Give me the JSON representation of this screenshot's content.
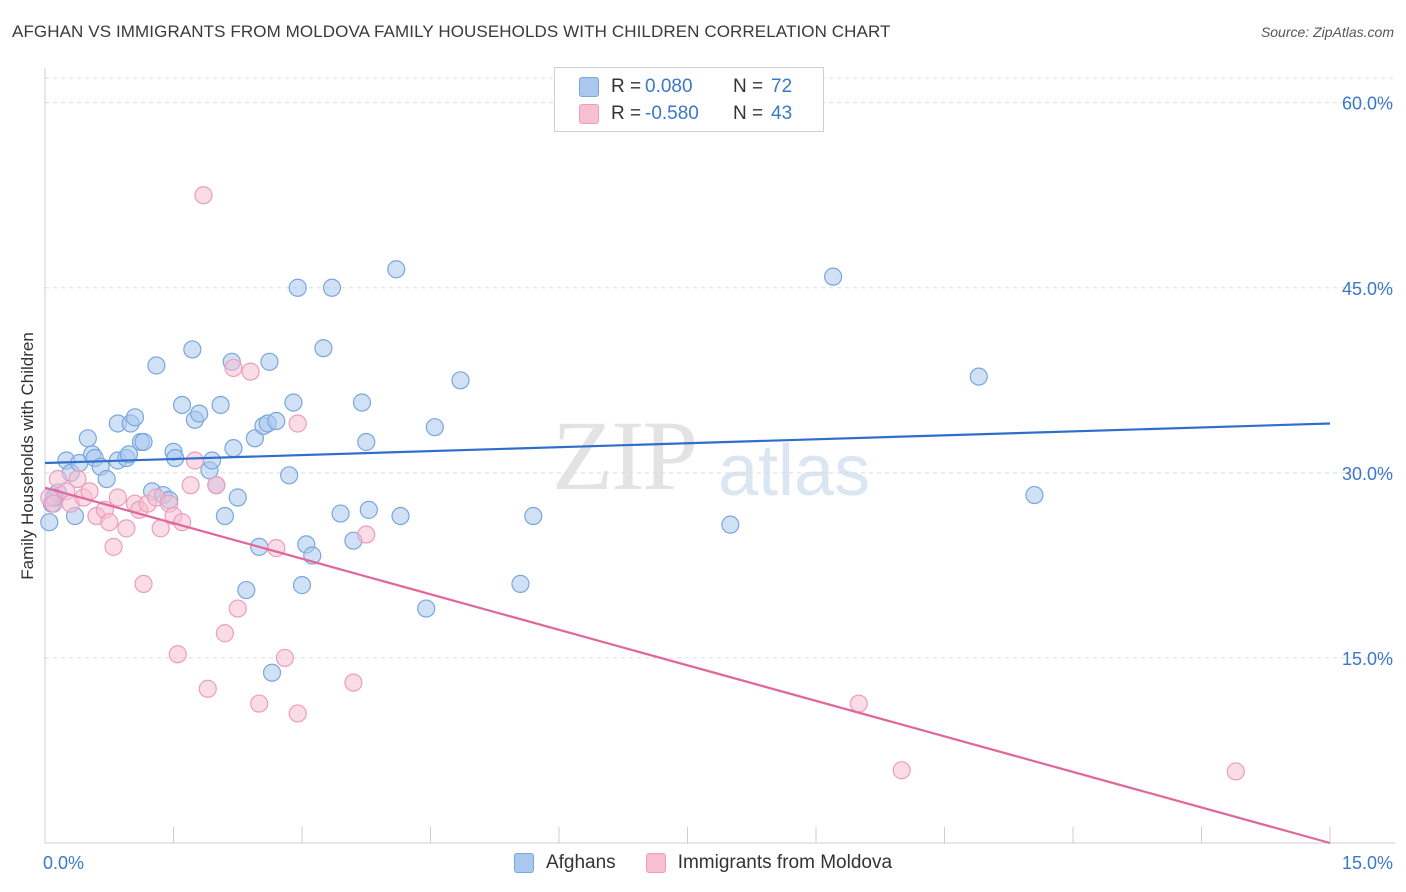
{
  "title": "AFGHAN VS IMMIGRANTS FROM MOLDOVA FAMILY HOUSEHOLDS WITH CHILDREN CORRELATION CHART",
  "source": "Source: ZipAtlas.com",
  "watermark": {
    "zip": "ZIP",
    "atlas": "atlas"
  },
  "legend": {
    "rows": [
      {
        "r_label": "R =",
        "r_value": "0.080",
        "n_label": "N =",
        "n_value": "72"
      },
      {
        "r_label": "R =",
        "r_value": "-0.580",
        "n_label": "N =",
        "n_value": "43"
      }
    ]
  },
  "bottom_legend": {
    "afghans": "Afghans",
    "moldova": "Immigrants from Moldova"
  },
  "colors": {
    "afghan_fill": "#aac8ee",
    "afghan_stroke": "#7aa6de",
    "afghan_line": "#2f6fcb",
    "moldova_fill": "#f6bfd2",
    "moldova_stroke": "#ee9dbb",
    "moldova_line": "#e0679a",
    "tick_label": "#3a78c9",
    "grid": "#dcdcdc"
  },
  "chart_data": {
    "type": "scatter",
    "title": "AFGHAN VS IMMIGRANTS FROM MOLDOVA FAMILY HOUSEHOLDS WITH CHILDREN CORRELATION CHART",
    "xlabel": "",
    "ylabel": "Family Households with Children",
    "xlim": [
      0,
      15
    ],
    "ylim": [
      0,
      62
    ],
    "x_tick_labels": [
      "0.0%",
      "15.0%"
    ],
    "y_ticks": [
      15,
      30,
      45,
      60
    ],
    "y_tick_labels": [
      "15.0%",
      "30.0%",
      "45.0%",
      "60.0%"
    ],
    "grid": true,
    "legend_position": "top-center",
    "series": [
      {
        "name": "Afghans",
        "r": 0.08,
        "n": 72,
        "trend": {
          "x": [
            0,
            15
          ],
          "y": [
            30.8,
            34.0
          ]
        },
        "points": [
          [
            0.05,
            26.0
          ],
          [
            0.08,
            27.5
          ],
          [
            0.12,
            28.0
          ],
          [
            0.15,
            28.4
          ],
          [
            0.25,
            31.0
          ],
          [
            0.3,
            30.0
          ],
          [
            0.35,
            26.5
          ],
          [
            0.4,
            30.8
          ],
          [
            0.5,
            32.8
          ],
          [
            0.55,
            31.5
          ],
          [
            0.58,
            31.2
          ],
          [
            0.65,
            30.5
          ],
          [
            0.72,
            29.5
          ],
          [
            0.85,
            31.0
          ],
          [
            0.85,
            34.0
          ],
          [
            0.95,
            31.2
          ],
          [
            0.98,
            31.5
          ],
          [
            1.0,
            34.0
          ],
          [
            1.05,
            34.5
          ],
          [
            1.12,
            32.5
          ],
          [
            1.15,
            32.5
          ],
          [
            1.25,
            28.5
          ],
          [
            1.3,
            38.7
          ],
          [
            1.38,
            28.2
          ],
          [
            1.45,
            27.8
          ],
          [
            1.5,
            31.7
          ],
          [
            1.52,
            31.2
          ],
          [
            1.6,
            35.5
          ],
          [
            1.72,
            40.0
          ],
          [
            1.75,
            34.3
          ],
          [
            1.8,
            34.8
          ],
          [
            1.92,
            30.2
          ],
          [
            1.95,
            31.0
          ],
          [
            2.0,
            29.0
          ],
          [
            2.05,
            35.5
          ],
          [
            2.1,
            26.5
          ],
          [
            2.18,
            39.0
          ],
          [
            2.2,
            32.0
          ],
          [
            2.25,
            28.0
          ],
          [
            2.35,
            20.5
          ],
          [
            2.45,
            32.8
          ],
          [
            2.5,
            24.0
          ],
          [
            2.55,
            33.8
          ],
          [
            2.6,
            34.0
          ],
          [
            2.62,
            39.0
          ],
          [
            2.65,
            13.8
          ],
          [
            2.7,
            34.2
          ],
          [
            2.85,
            29.8
          ],
          [
            2.9,
            35.7
          ],
          [
            2.95,
            45.0
          ],
          [
            3.0,
            20.9
          ],
          [
            3.05,
            24.2
          ],
          [
            3.12,
            23.3
          ],
          [
            3.25,
            40.1
          ],
          [
            3.35,
            45.0
          ],
          [
            3.45,
            26.7
          ],
          [
            3.6,
            24.5
          ],
          [
            3.7,
            35.7
          ],
          [
            3.75,
            32.5
          ],
          [
            3.78,
            27.0
          ],
          [
            4.1,
            46.5
          ],
          [
            4.15,
            26.5
          ],
          [
            4.45,
            19.0
          ],
          [
            4.55,
            33.7
          ],
          [
            4.85,
            37.5
          ],
          [
            5.55,
            21.0
          ],
          [
            5.7,
            26.5
          ],
          [
            8.0,
            25.8
          ],
          [
            9.2,
            45.9
          ],
          [
            10.9,
            37.8
          ],
          [
            11.55,
            28.2
          ],
          [
            0.1,
            28.0
          ]
        ]
      },
      {
        "name": "Immigrants from Moldova",
        "r": -0.58,
        "n": 43,
        "trend": {
          "x": [
            0,
            15
          ],
          "y": [
            28.8,
            0.0
          ]
        },
        "points": [
          [
            0.05,
            28.0
          ],
          [
            0.1,
            27.5
          ],
          [
            0.15,
            29.5
          ],
          [
            0.25,
            28.5
          ],
          [
            0.3,
            27.5
          ],
          [
            0.38,
            29.5
          ],
          [
            0.45,
            28.0
          ],
          [
            0.52,
            28.5
          ],
          [
            0.6,
            26.5
          ],
          [
            0.7,
            27.0
          ],
          [
            0.75,
            26.0
          ],
          [
            0.8,
            24.0
          ],
          [
            0.85,
            28.0
          ],
          [
            0.95,
            25.5
          ],
          [
            1.05,
            27.5
          ],
          [
            1.1,
            27.0
          ],
          [
            1.15,
            21.0
          ],
          [
            1.2,
            27.5
          ],
          [
            1.3,
            28.0
          ],
          [
            1.35,
            25.5
          ],
          [
            1.45,
            27.5
          ],
          [
            1.5,
            26.5
          ],
          [
            1.55,
            15.3
          ],
          [
            1.6,
            26.0
          ],
          [
            1.7,
            29.0
          ],
          [
            1.75,
            31.0
          ],
          [
            1.85,
            52.5
          ],
          [
            1.9,
            12.5
          ],
          [
            2.0,
            29.0
          ],
          [
            2.1,
            17.0
          ],
          [
            2.2,
            38.5
          ],
          [
            2.25,
            19.0
          ],
          [
            2.4,
            38.2
          ],
          [
            2.5,
            11.3
          ],
          [
            2.7,
            23.9
          ],
          [
            2.8,
            15.0
          ],
          [
            2.95,
            10.5
          ],
          [
            2.95,
            34.0
          ],
          [
            3.6,
            13.0
          ],
          [
            3.75,
            25.0
          ],
          [
            9.5,
            11.3
          ],
          [
            10.0,
            5.9
          ],
          [
            13.9,
            5.8
          ]
        ]
      }
    ]
  }
}
